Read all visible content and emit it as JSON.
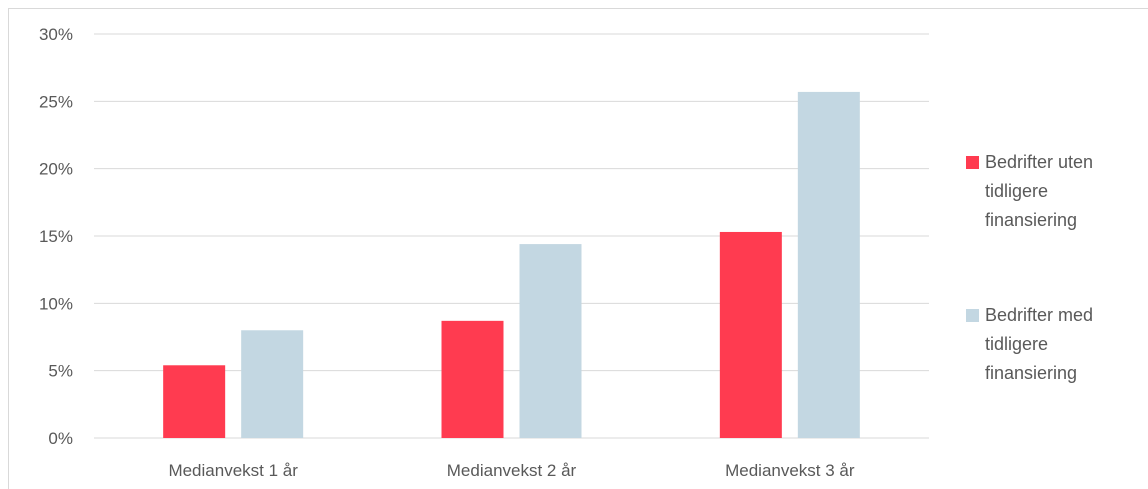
{
  "chart_data": {
    "type": "bar",
    "categories": [
      "Medianvekst  1 år",
      "Medianvekst 2 år",
      "Medianvekst 3 år"
    ],
    "series": [
      {
        "name": "Bedrifter uten tidligere finansiering",
        "legend_lines": [
          "Bedrifter uten",
          "tidligere",
          "finansiering"
        ],
        "color": "#ff3b50",
        "values": [
          5.4,
          8.7,
          15.3
        ]
      },
      {
        "name": "Bedrifter med tidligere finansiering",
        "legend_lines": [
          "Bedrifter med",
          "tidligere",
          "finansiering"
        ],
        "color": "#c3d7e2",
        "values": [
          8.0,
          14.4,
          25.7
        ]
      }
    ],
    "ylim": [
      0,
      30
    ],
    "yticks": [
      0,
      5,
      10,
      15,
      20,
      25,
      30
    ],
    "ytick_labels": [
      "0%",
      "5%",
      "10%",
      "15%",
      "20%",
      "25%",
      "30%"
    ],
    "grid": true,
    "gridline_color": "#d9d9d9",
    "legend_position": "right",
    "title": "",
    "xlabel": "",
    "ylabel": ""
  }
}
